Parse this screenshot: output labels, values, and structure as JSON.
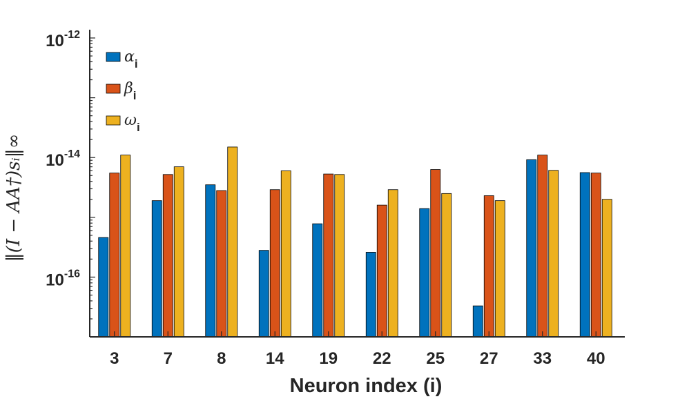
{
  "chart_data": {
    "type": "bar",
    "xlabel": "Neuron index (i)",
    "ylabel": "‖(I − AA†)sᵢ‖∞",
    "yscale": "log",
    "ylim": [
      1e-17,
      1e-12
    ],
    "yticks": [
      {
        "value": 1e-12,
        "base": "10",
        "exp": "-12"
      },
      {
        "value": 1e-14,
        "base": "10",
        "exp": "-14"
      },
      {
        "value": 1e-16,
        "base": "10",
        "exp": "-16"
      }
    ],
    "categories": [
      "3",
      "7",
      "8",
      "14",
      "19",
      "22",
      "25",
      "27",
      "33",
      "40"
    ],
    "series": [
      {
        "name": "α",
        "sub": "i",
        "color": "#0072BD",
        "values": [
          4.6e-16,
          1.9e-15,
          3.5e-15,
          2.8e-16,
          7.8e-16,
          2.6e-16,
          1.4e-15,
          3.3e-17,
          9.2e-15,
          5.6e-15
        ]
      },
      {
        "name": "β",
        "sub": "i",
        "color": "#D95319",
        "values": [
          5.5e-15,
          5.2e-15,
          2.8e-15,
          2.9e-15,
          5.3e-15,
          1.6e-15,
          6.3e-15,
          2.3e-15,
          1.1e-14,
          5.5e-15
        ]
      },
      {
        "name": "ω",
        "sub": "i",
        "color": "#EDB120",
        "values": [
          1.1e-14,
          7e-15,
          1.5e-14,
          6e-15,
          5.2e-15,
          2.9e-15,
          2.5e-15,
          1.9e-15,
          6.1e-15,
          2e-15
        ]
      }
    ],
    "legend_position": "top-left",
    "grid": false
  }
}
